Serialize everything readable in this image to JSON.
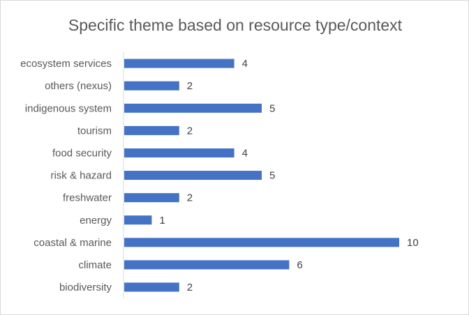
{
  "chart_data": {
    "type": "bar",
    "orientation": "horizontal",
    "title": "Specific theme based on resource type/context",
    "categories": [
      "ecosystem services",
      "others (nexus)",
      "indigenous system",
      "tourism",
      "food security",
      "risk & hazard",
      "freshwater",
      "energy",
      "coastal & marine",
      "climate",
      "biodiversity"
    ],
    "values": [
      4,
      2,
      5,
      2,
      4,
      5,
      2,
      1,
      10,
      6,
      2
    ],
    "xlim": [
      0,
      10
    ],
    "grid": false,
    "legend": "none",
    "data_labels": true,
    "bar_color": "#4472c4"
  }
}
